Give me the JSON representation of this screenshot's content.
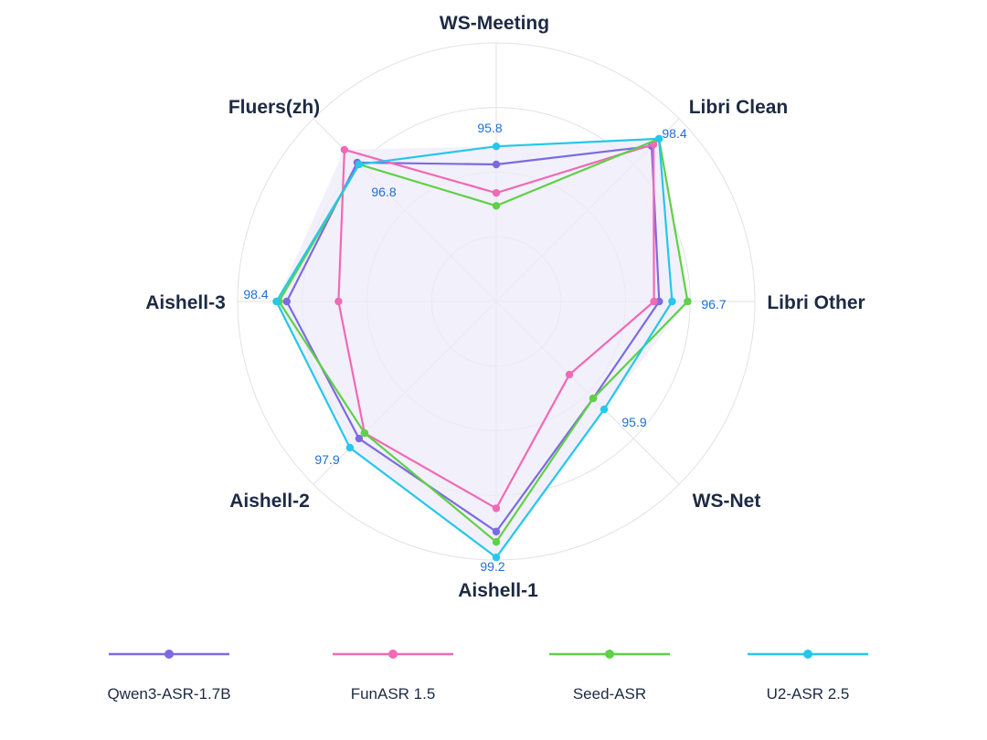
{
  "chart_data": {
    "type": "radar",
    "axes": [
      "WS-Meeting",
      "Libri Clean",
      "Libri Other",
      "WS-Net",
      "Aishell-1",
      "Aishell-2",
      "Aishell-3",
      "Fluers(zh)"
    ],
    "series": [
      {
        "name": "Qwen3-ASR-1.7B",
        "color": "#7b6be0",
        "values": [
          0.53,
          0.85,
          0.63,
          0.53,
          0.89,
          0.75,
          0.81,
          0.76
        ]
      },
      {
        "name": "FunASR 1.5",
        "color": "#f06ab5",
        "values": [
          0.42,
          0.86,
          0.61,
          0.4,
          0.8,
          0.72,
          0.61,
          0.83
        ]
      },
      {
        "name": "Seed-ASR",
        "color": "#5ed146",
        "values": [
          0.37,
          0.89,
          0.74,
          0.53,
          0.93,
          0.72,
          0.84,
          0.75
        ]
      },
      {
        "name": "U2-ASR 2.5",
        "color": "#25c7ea",
        "values": [
          0.6,
          0.89,
          0.68,
          0.59,
          0.99,
          0.8,
          0.85,
          0.75
        ]
      }
    ],
    "value_labels": [
      {
        "axis": "WS-Meeting",
        "text": "95.8"
      },
      {
        "axis": "Libri Clean",
        "text": "98.4"
      },
      {
        "axis": "Libri Other",
        "text": "96.7"
      },
      {
        "axis": "WS-Net",
        "text": "95.9"
      },
      {
        "axis": "Aishell-1",
        "text": "99.2"
      },
      {
        "axis": "Aishell-2",
        "text": "97.9"
      },
      {
        "axis": "Aishell-3",
        "text": "98.4"
      },
      {
        "axis": "Fluers(zh)",
        "text": "96.8"
      }
    ],
    "value_label_color": "#1f6fd6",
    "grid_color": "#e2e2e2",
    "fill_color": "#eeebfa",
    "rings": 4,
    "legend_position": "bottom"
  }
}
